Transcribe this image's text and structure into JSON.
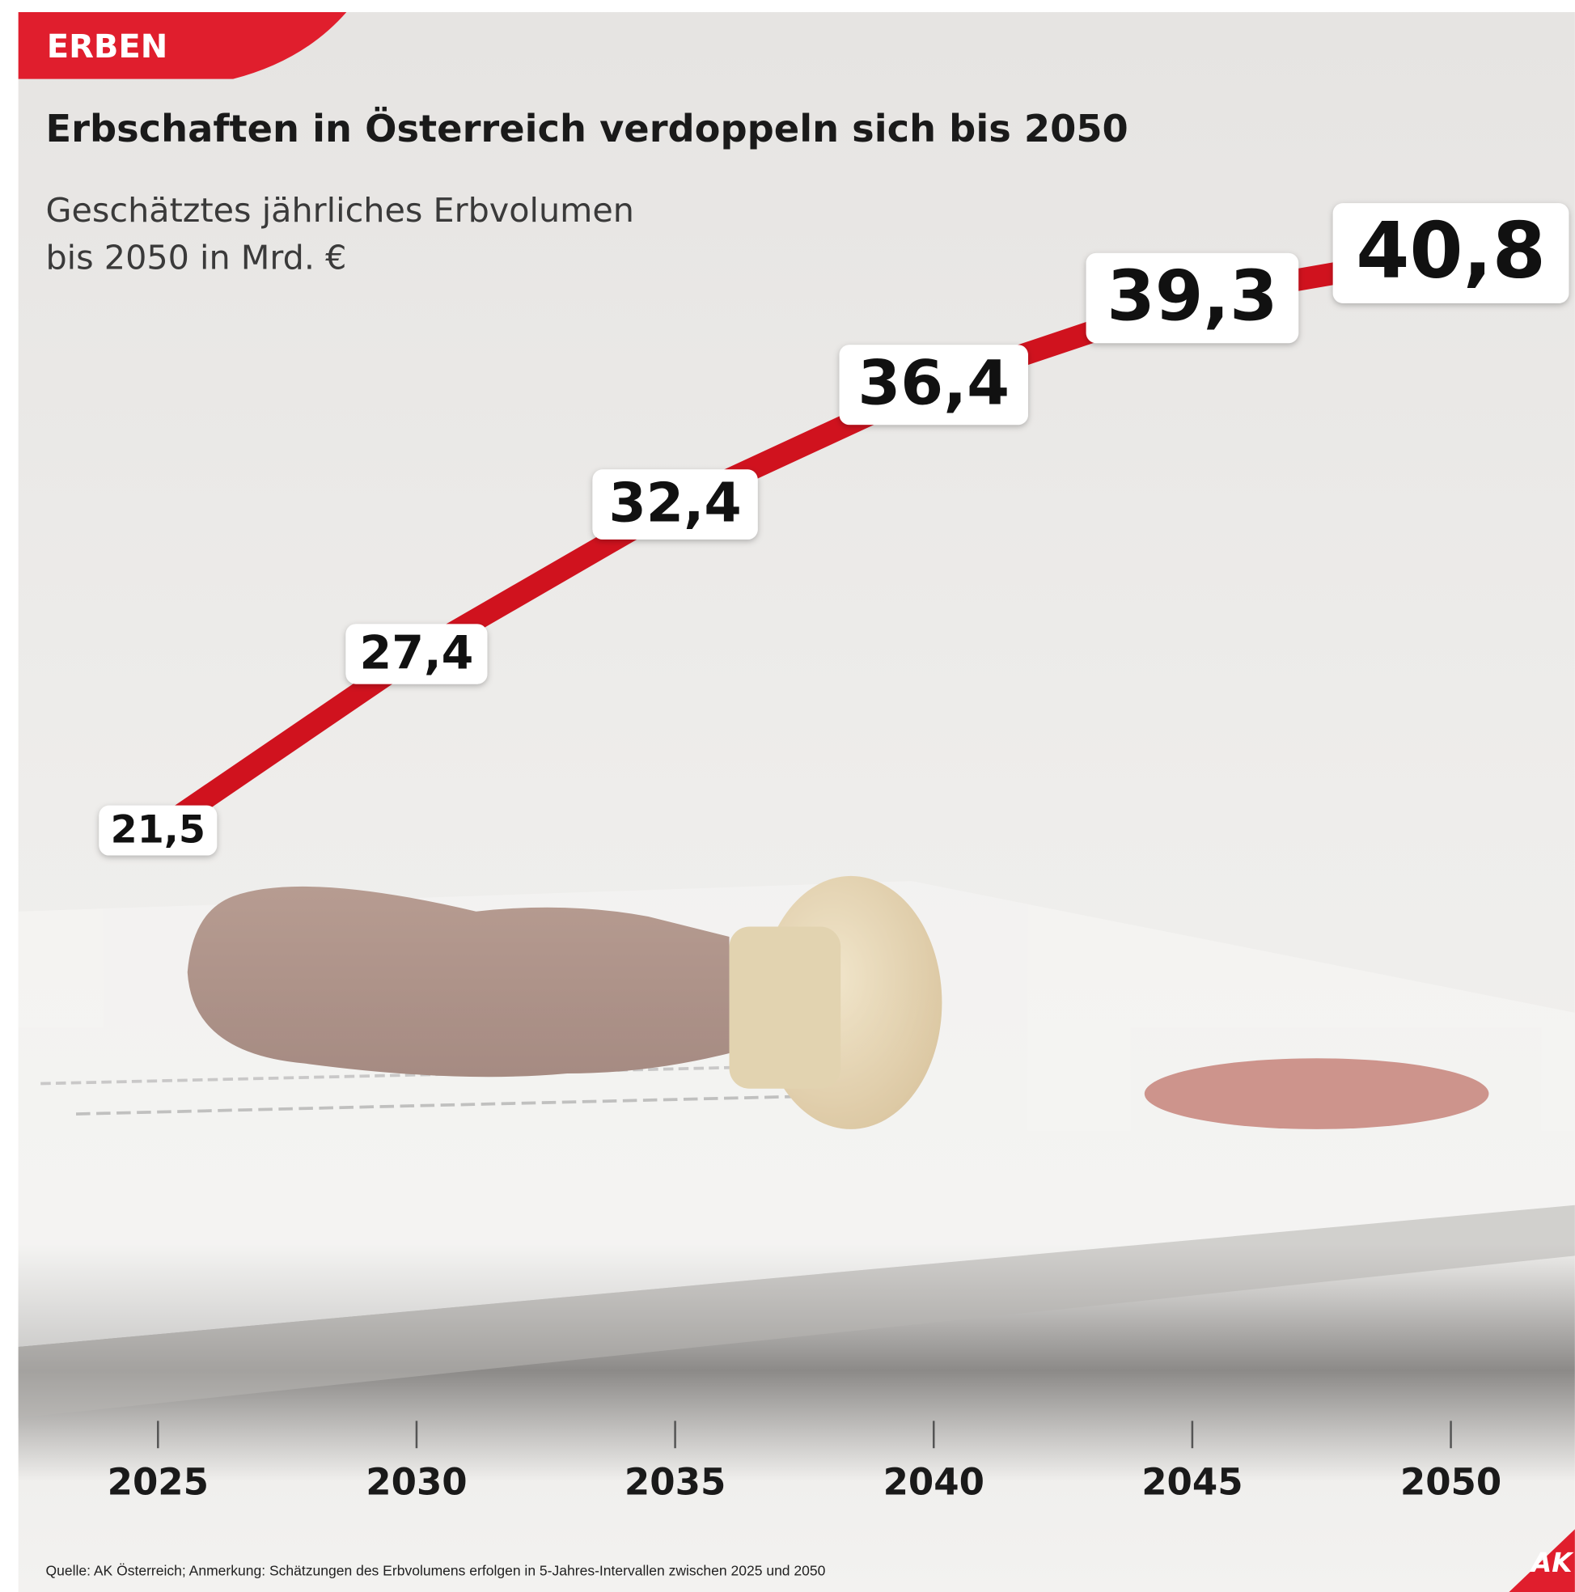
{
  "chart_data": {
    "type": "line",
    "tag": "ERBEN",
    "title": "Erbschaften in Österreich verdoppeln sich bis 2050",
    "subtitle": [
      "Geschätztes jährliches Erbvolumen",
      "bis 2050 in Mrd. €"
    ],
    "x": [
      2025,
      2030,
      2035,
      2040,
      2045,
      2050
    ],
    "values": [
      21.5,
      27.4,
      32.4,
      36.4,
      39.3,
      40.8
    ],
    "value_labels": [
      "21,5",
      "27,4",
      "32,4",
      "36,4",
      "39,3",
      "40,8"
    ],
    "color": "#d0121e",
    "xlim": [
      2022.3,
      2052.3
    ],
    "xticks": [
      2025,
      2030,
      2035,
      2040,
      2045,
      2050
    ],
    "ylim": [
      0,
      45
    ],
    "source": "Quelle: AK Österreich; Anmerkung: Schätzungen des Erbvolumens erfolgen in 5-Jahres-Intervallen zwischen 2025 und 2050",
    "logo": "AK"
  }
}
